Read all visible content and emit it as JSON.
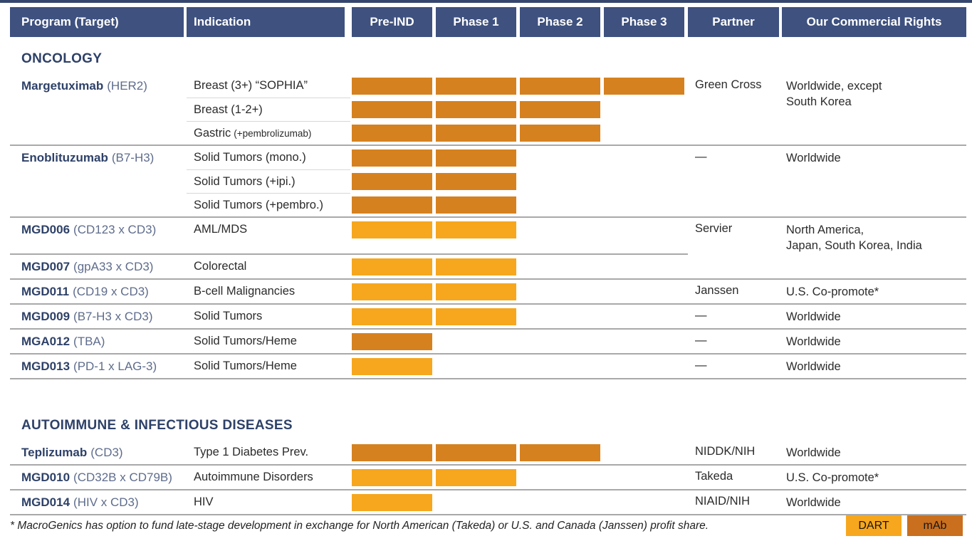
{
  "header": {
    "columns": [
      "Program (Target)",
      "Indication",
      "Pre-IND",
      "Phase 1",
      "Phase 2",
      "Phase 3",
      "Partner",
      "Our Commercial Rights"
    ]
  },
  "colors": {
    "top_strip": "#35466E",
    "header_bg": "#3E517F",
    "navy": "#2E4168",
    "target_text": "#5E6C8C",
    "dart": "#F6A71E",
    "mab": "#D6811F",
    "mab_legend": "#C96F1E",
    "divider": "#A9A9A9",
    "subdivider": "#D8D8D8"
  },
  "phases": [
    "Pre-IND",
    "Phase 1",
    "Phase 2",
    "Phase 3"
  ],
  "sections": [
    {
      "title": "ONCOLOGY",
      "groups": [
        {
          "program": "Margetuximab",
          "target": "(HER2)",
          "partner": "Green Cross",
          "rights_lines": [
            "Worldwide, except",
            "South Korea"
          ],
          "divider_after": "full",
          "rows": [
            {
              "indication": "Breast (3+) “SOPHIA”",
              "phases": 4,
              "type": "mab"
            },
            {
              "indication": "Breast (1-2+)",
              "phases": 3,
              "type": "mab"
            },
            {
              "indication": "Gastric",
              "indication_small": "(+pembrolizumab)",
              "phases": 3,
              "type": "mab"
            }
          ]
        },
        {
          "program": "Enoblituzumab",
          "target": "(B7-H3)",
          "partner": "—",
          "rights_lines": [
            "Worldwide"
          ],
          "divider_after": "full",
          "rows": [
            {
              "indication": "Solid Tumors (mono.)",
              "phases": 2,
              "type": "mab"
            },
            {
              "indication": "Solid Tumors (+ipi.)",
              "phases": 2,
              "type": "mab"
            },
            {
              "indication": "Solid Tumors (+pembro.)",
              "phases": 2,
              "type": "mab"
            }
          ]
        },
        {
          "program": "MGD006",
          "target": "(CD123 x CD3)",
          "partner": "Servier",
          "rights_lines": [
            "North America,",
            "Japan, South Korea, India"
          ],
          "divider_after": "partial",
          "rows": [
            {
              "indication": "AML/MDS",
              "phases": 2,
              "type": "dart"
            }
          ]
        },
        {
          "program": "MGD007",
          "target": "(gpA33 x CD3)",
          "partner": "",
          "rights_lines": [],
          "divider_after": "full",
          "rows": [
            {
              "indication": "Colorectal",
              "phases": 2,
              "type": "dart"
            }
          ]
        },
        {
          "program": "MGD011",
          "target": "(CD19 x CD3)",
          "partner": "Janssen",
          "rights_lines": [
            "U.S. Co-promote*"
          ],
          "divider_after": "full",
          "rows": [
            {
              "indication": "B-cell Malignancies",
              "phases": 2,
              "type": "dart"
            }
          ]
        },
        {
          "program": "MGD009",
          "target": "(B7-H3 x CD3)",
          "partner": "—",
          "rights_lines": [
            "Worldwide"
          ],
          "divider_after": "full",
          "rows": [
            {
              "indication": "Solid Tumors",
              "phases": 2,
              "type": "dart"
            }
          ]
        },
        {
          "program": "MGA012",
          "target": "(TBA)",
          "partner": "—",
          "rights_lines": [
            "Worldwide"
          ],
          "divider_after": "full",
          "rows": [
            {
              "indication": "Solid Tumors/Heme",
              "phases": 1,
              "type": "mab"
            }
          ]
        },
        {
          "program": "MGD013",
          "target": "(PD-1 x LAG-3)",
          "partner": "—",
          "rights_lines": [
            "Worldwide"
          ],
          "divider_after": "full",
          "rows": [
            {
              "indication": "Solid Tumors/Heme",
              "phases": 1,
              "type": "dart"
            }
          ]
        }
      ]
    },
    {
      "title": "AUTOIMMUNE & INFECTIOUS DISEASES",
      "groups": [
        {
          "program": "Teplizumab",
          "target": "(CD3)",
          "partner": "NIDDK/NIH",
          "rights_lines": [
            "Worldwide"
          ],
          "divider_after": "full",
          "rows": [
            {
              "indication": "Type 1 Diabetes Prev.",
              "phases": 3,
              "type": "mab"
            }
          ]
        },
        {
          "program": "MGD010",
          "target": "(CD32B x CD79B)",
          "partner": "Takeda",
          "rights_lines": [
            "U.S. Co-promote*"
          ],
          "divider_after": "full",
          "rows": [
            {
              "indication": "Autoimmune Disorders",
              "phases": 2,
              "type": "dart"
            }
          ]
        },
        {
          "program": "MGD014",
          "target": "(HIV x CD3)",
          "partner": "NIAID/NIH",
          "rights_lines": [
            "Worldwide"
          ],
          "divider_after": "full",
          "rows": [
            {
              "indication": "HIV",
              "phases": 1,
              "type": "dart"
            }
          ]
        }
      ]
    }
  ],
  "footnote": "* MacroGenics has option to fund late-stage development in exchange for North American (Takeda) or U.S. and Canada (Janssen) profit share.",
  "legend": [
    {
      "label": "DART",
      "color_key": "dart"
    },
    {
      "label": "mAb",
      "color_key": "mab_legend"
    }
  ]
}
